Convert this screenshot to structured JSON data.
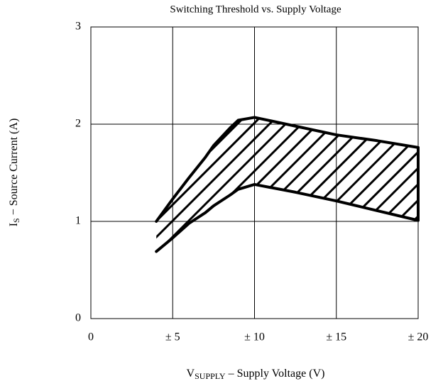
{
  "chart_data": {
    "type": "range_area",
    "title": "Switching Threshold vs. Supply Voltage",
    "xlabel_parts": [
      "V",
      "SUPPLY",
      " – Supply Voltage (V)"
    ],
    "ylabel_parts": [
      "I",
      "S",
      " − Source Current (A)"
    ],
    "x": [
      4,
      5,
      6,
      7,
      7.5,
      8.5,
      9,
      10,
      12.5,
      15,
      17.5,
      20
    ],
    "series": [
      {
        "color": "#000000",
        "values": [
          1.0,
          1.23,
          1.45,
          1.66,
          1.78,
          1.96,
          2.04,
          2.07,
          1.98,
          1.89,
          1.83,
          1.76
        ]
      },
      {
        "color": "#000000",
        "values": [
          0.69,
          0.83,
          0.98,
          1.09,
          1.16,
          1.27,
          1.33,
          1.38,
          1.3,
          1.21,
          1.11,
          1.01
        ]
      }
    ],
    "xlim": [
      0,
      20
    ],
    "ylim": [
      0,
      3
    ],
    "xticks": [
      0,
      {
        "value": 5,
        "label": "± 5"
      },
      {
        "value": 10,
        "label": "± 10"
      },
      {
        "value": 15,
        "label": "± 15"
      },
      {
        "value": 20,
        "label": "± 20"
      }
    ],
    "yticks": [
      0,
      1,
      2,
      3
    ],
    "grid": true,
    "hatch": true
  }
}
